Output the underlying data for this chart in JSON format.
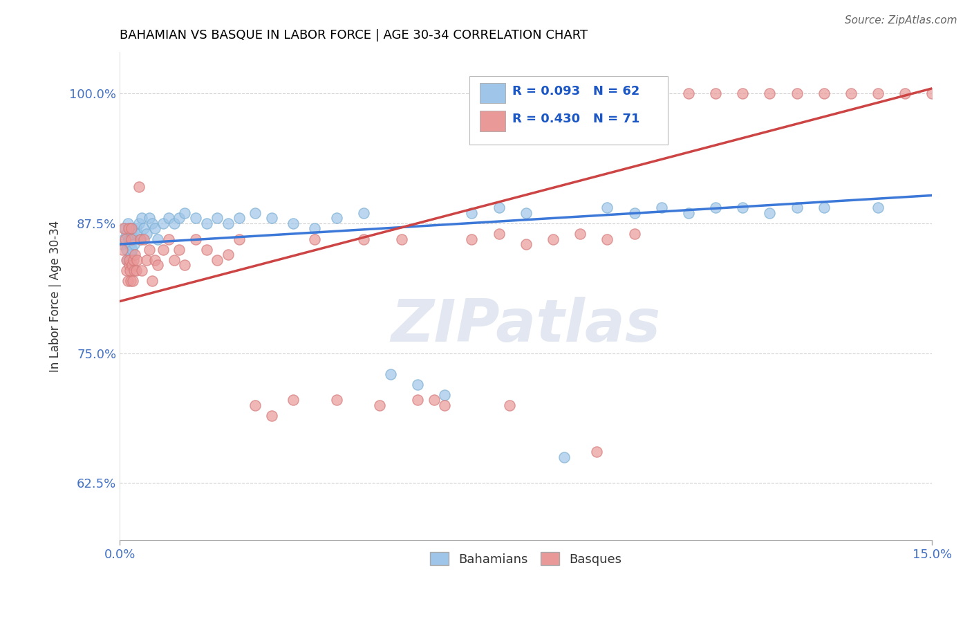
{
  "title": "BAHAMIAN VS BASQUE IN LABOR FORCE | AGE 30-34 CORRELATION CHART",
  "source_text": "Source: ZipAtlas.com",
  "ylabel": "In Labor Force | Age 30-34",
  "xlim": [
    0.0,
    15.0
  ],
  "ylim": [
    57.0,
    104.0
  ],
  "yticks": [
    62.5,
    75.0,
    87.5,
    100.0
  ],
  "xtick_labels": [
    "0.0%",
    "15.0%"
  ],
  "ytick_labels": [
    "62.5%",
    "75.0%",
    "87.5%",
    "100.0%"
  ],
  "blue_color": "#9fc5e8",
  "pink_color": "#ea9999",
  "blue_line_color": "#3c78d8",
  "pink_line_color": "#cc4444",
  "R_blue": 0.093,
  "N_blue": 62,
  "R_pink": 0.43,
  "N_pink": 71,
  "watermark": "ZIPatlas",
  "watermark_color": "#d0d8e8",
  "legend_labels": [
    "Bahamians",
    "Basques"
  ],
  "grid_color": "#cccccc",
  "background_color": "#ffffff",
  "title_color": "#000000",
  "blue_scatter_x": [
    0.05,
    0.08,
    0.1,
    0.12,
    0.13,
    0.14,
    0.15,
    0.16,
    0.17,
    0.18,
    0.19,
    0.2,
    0.21,
    0.22,
    0.23,
    0.24,
    0.25,
    0.27,
    0.3,
    0.32,
    0.35,
    0.38,
    0.4,
    0.45,
    0.5,
    0.55,
    0.6,
    0.65,
    0.7,
    0.8,
    0.9,
    1.0,
    1.1,
    1.2,
    1.4,
    1.6,
    1.8,
    2.0,
    2.2,
    2.5,
    2.8,
    3.2,
    3.6,
    4.0,
    4.5,
    5.0,
    5.5,
    6.0,
    6.5,
    7.0,
    7.5,
    8.2,
    9.0,
    9.5,
    10.0,
    10.5,
    11.0,
    11.5,
    12.0,
    12.5,
    13.0,
    14.0
  ],
  "blue_scatter_y": [
    85.5,
    86.0,
    87.0,
    85.0,
    86.5,
    84.0,
    87.5,
    86.0,
    85.5,
    87.0,
    86.0,
    85.5,
    84.5,
    86.5,
    85.0,
    87.0,
    86.0,
    85.5,
    87.0,
    86.5,
    87.5,
    86.0,
    88.0,
    87.0,
    86.5,
    88.0,
    87.5,
    87.0,
    86.0,
    87.5,
    88.0,
    87.5,
    88.0,
    88.5,
    88.0,
    87.5,
    88.0,
    87.5,
    88.0,
    88.5,
    88.0,
    87.5,
    87.0,
    88.0,
    88.5,
    73.0,
    72.0,
    71.0,
    88.5,
    89.0,
    88.5,
    65.0,
    89.0,
    88.5,
    89.0,
    88.5,
    89.0,
    89.0,
    88.5,
    89.0,
    89.0,
    89.0
  ],
  "pink_scatter_x": [
    0.05,
    0.08,
    0.1,
    0.12,
    0.13,
    0.15,
    0.16,
    0.17,
    0.18,
    0.19,
    0.2,
    0.21,
    0.22,
    0.23,
    0.24,
    0.25,
    0.27,
    0.28,
    0.3,
    0.32,
    0.35,
    0.38,
    0.4,
    0.45,
    0.5,
    0.55,
    0.6,
    0.65,
    0.7,
    0.8,
    0.9,
    1.0,
    1.1,
    1.2,
    1.4,
    1.6,
    1.8,
    2.0,
    2.2,
    2.5,
    2.8,
    3.2,
    3.6,
    4.0,
    4.5,
    4.8,
    5.2,
    5.8,
    6.5,
    7.0,
    7.5,
    8.0,
    8.5,
    9.0,
    9.5,
    10.0,
    10.5,
    11.0,
    11.5,
    12.0,
    12.5,
    13.0,
    13.5,
    14.0,
    14.5,
    15.0,
    15.2,
    5.5,
    6.0,
    8.8,
    7.2
  ],
  "pink_scatter_y": [
    85.0,
    87.0,
    86.0,
    84.0,
    83.0,
    82.0,
    87.0,
    83.5,
    84.0,
    83.0,
    82.0,
    86.0,
    87.0,
    83.5,
    82.0,
    84.0,
    83.0,
    84.5,
    83.0,
    84.0,
    91.0,
    86.0,
    83.0,
    86.0,
    84.0,
    85.0,
    82.0,
    84.0,
    83.5,
    85.0,
    86.0,
    84.0,
    85.0,
    83.5,
    86.0,
    85.0,
    84.0,
    84.5,
    86.0,
    70.0,
    69.0,
    70.5,
    86.0,
    70.5,
    86.0,
    70.0,
    86.0,
    70.5,
    86.0,
    86.5,
    85.5,
    86.0,
    86.5,
    86.0,
    86.5,
    100.0,
    100.0,
    100.0,
    100.0,
    100.0,
    100.0,
    100.0,
    100.0,
    100.0,
    100.0,
    100.0,
    100.0,
    70.5,
    70.0,
    65.5,
    70.0
  ]
}
